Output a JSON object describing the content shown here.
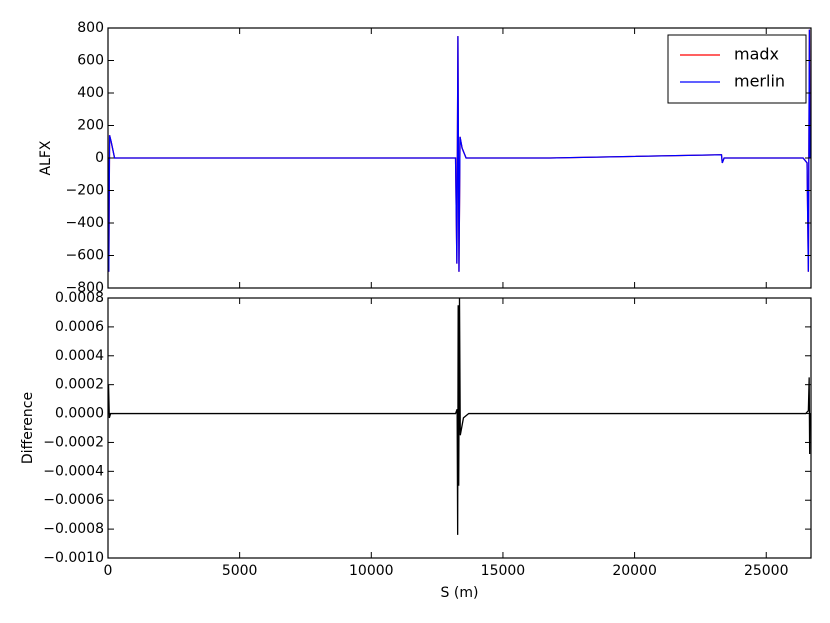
{
  "chart_data": [
    {
      "type": "line",
      "ylabel": "ALFX",
      "legend": "upper right",
      "x": [
        0,
        30,
        60,
        120,
        250,
        3300,
        6800,
        10200,
        13200,
        13250,
        13290,
        13330,
        13370,
        13450,
        13600,
        16800,
        23300,
        23330,
        23400,
        26400,
        26550,
        26600,
        26640,
        26659
      ],
      "series": [
        {
          "name": "madx",
          "color": "#ff0000",
          "values": [
            0,
            -700,
            140,
            100,
            0,
            0,
            0,
            0,
            0,
            -650,
            750,
            -700,
            130,
            60,
            0,
            0,
            20,
            -30,
            0,
            0,
            -30,
            -700,
            790,
            0
          ]
        },
        {
          "name": "merlin",
          "color": "#0000ff",
          "values": [
            0,
            -700,
            140,
            100,
            0,
            0,
            0,
            0,
            0,
            -650,
            750,
            -700,
            130,
            60,
            0,
            0,
            20,
            -30,
            0,
            0,
            -30,
            -700,
            790,
            0
          ]
        }
      ],
      "xlim": [
        0,
        26700
      ],
      "xticks": [
        0,
        5000,
        10000,
        15000,
        20000,
        25000
      ],
      "ylim": [
        -800,
        800
      ],
      "yticks": [
        {
          "value": -800,
          "label": "−800"
        },
        {
          "value": -600,
          "label": "−600"
        },
        {
          "value": -400,
          "label": "−400"
        },
        {
          "value": -200,
          "label": "−200"
        },
        0,
        200,
        400,
        600,
        800
      ]
    },
    {
      "type": "line",
      "ylabel": "Difference",
      "xlabel": "S (m)",
      "x": [
        0,
        20,
        50,
        100,
        13200,
        13260,
        13280,
        13300,
        13320,
        13350,
        13380,
        13500,
        13700,
        26500,
        26600,
        26630,
        26650,
        26659
      ],
      "series": [
        {
          "color": "#000000",
          "values": [
            0,
            0.0002,
            -3e-05,
            0,
            0,
            3e-05,
            -0.00084,
            0.00075,
            -0.0005,
            0.0008,
            -0.00015,
            -3e-05,
            0,
            0,
            2e-05,
            0.00025,
            -0.00028,
            0
          ]
        }
      ],
      "xlim": [
        0,
        26700
      ],
      "xticks": [
        0,
        5000,
        10000,
        15000,
        20000,
        25000
      ],
      "ylim": [
        -0.001,
        0.0008
      ],
      "yticks": [
        {
          "value": -0.001,
          "label": "−0.0010"
        },
        {
          "value": -0.0008,
          "label": "−0.0008"
        },
        {
          "value": -0.0006,
          "label": "−0.0006"
        },
        {
          "value": -0.0004,
          "label": "−0.0004"
        },
        {
          "value": -0.0002,
          "label": "−0.0002"
        },
        {
          "value": 0,
          "label": "0.0000"
        },
        {
          "value": 0.0002,
          "label": "0.0002"
        },
        {
          "value": 0.0004,
          "label": "0.0004"
        },
        {
          "value": 0.0006,
          "label": "0.0006"
        },
        {
          "value": 0.0008,
          "label": "0.0008"
        }
      ]
    }
  ]
}
